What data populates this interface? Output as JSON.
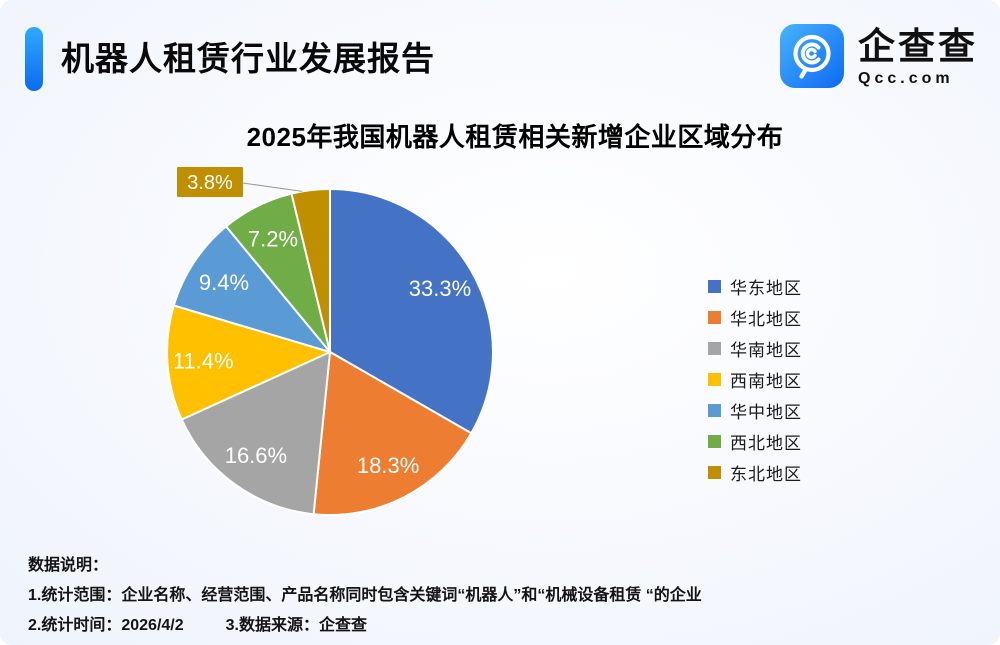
{
  "header": {
    "report_title": "机器人租赁行业发展报告",
    "logo": {
      "name": "企查查",
      "domain": "Qcc.com"
    }
  },
  "chart_data": {
    "type": "pie",
    "title": "2025年我国机器人租赁相关新增企业区域分布",
    "unit": "%",
    "start_angle_deg": 0,
    "direction": "clockwise",
    "legend_position": "right",
    "total": 100,
    "series": [
      {
        "name": "华东地区",
        "value": 33.3,
        "label": "33.3%",
        "color": "#4472C4"
      },
      {
        "name": "华北地区",
        "value": 18.3,
        "label": "18.3%",
        "color": "#ED7D31"
      },
      {
        "name": "华南地区",
        "value": 16.6,
        "label": "16.6%",
        "color": "#A5A5A5"
      },
      {
        "name": "西南地区",
        "value": 11.4,
        "label": "11.4%",
        "color": "#FFC000"
      },
      {
        "name": "华中地区",
        "value": 9.4,
        "label": "9.4%",
        "color": "#5B9BD5"
      },
      {
        "name": "西北地区",
        "value": 7.2,
        "label": "7.2%",
        "color": "#70AD47"
      },
      {
        "name": "东北地区",
        "value": 3.8,
        "label": "3.8%",
        "color": "#BF8F00",
        "callout": true
      }
    ]
  },
  "footer": {
    "heading": "数据说明：",
    "note_scope": "1.统计范围：企业名称、经营范围、产品名称同时包含关键词“机器人”和“机械设备租赁 “的企业",
    "note_time": "2.统计时间：2026/4/2",
    "note_source": "3.数据来源：企查查"
  },
  "colors": {
    "accent_blue_top": "#2FA9FF",
    "accent_blue_bottom": "#0B6BEE",
    "slice_label_text": "#FFFFFF",
    "leader_line": "#999999",
    "background_edge": "#E7EEF9"
  }
}
